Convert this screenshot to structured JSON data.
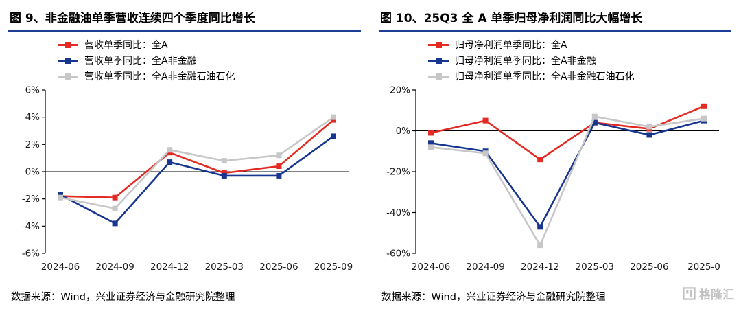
{
  "watermark": {
    "text": "格隆汇"
  },
  "chart_data": [
    {
      "type": "line",
      "title": "图 9、非金融油单季营收连续四个季度同比增长",
      "source": "数据来源：Wind，兴业证券经济与金融研究院整理",
      "categories": [
        "2024-06",
        "2024-09",
        "2024-12",
        "2025-03",
        "2025-06",
        "2025-09"
      ],
      "ylim": [
        -6,
        6
      ],
      "yticks": [
        6,
        4,
        2,
        0,
        -2,
        -4,
        -6
      ],
      "ytick_suffix": "%",
      "grid": false,
      "legend_position": "top-left",
      "series": [
        {
          "name": "营收单季同比：全A",
          "color": "#e32a23",
          "values": [
            -1.8,
            -1.9,
            1.4,
            -0.1,
            0.4,
            3.8
          ]
        },
        {
          "name": "营收单季同比：全A非金融",
          "color": "#17368f",
          "values": [
            -1.7,
            -3.8,
            0.7,
            -0.3,
            -0.3,
            2.6
          ]
        },
        {
          "name": "营收单季同比：全A非金融石油石化",
          "color": "#c7c7c7",
          "values": [
            -1.9,
            -2.7,
            1.6,
            0.8,
            1.2,
            4.0
          ]
        }
      ]
    },
    {
      "type": "line",
      "title": "图 10、25Q3 全 A 单季归母净利润同比大幅增长",
      "source": "数据来源：Wind，兴业证券经济与金融研究院整理",
      "categories": [
        "2024-06",
        "2024-09",
        "2024-12",
        "2025-03",
        "2025-06",
        "2025-0"
      ],
      "ylim": [
        -60,
        20
      ],
      "yticks": [
        20,
        0,
        -20,
        -40,
        -60
      ],
      "ytick_suffix": "%",
      "grid": false,
      "legend_position": "top-left",
      "series": [
        {
          "name": "归母净利润单季同比：全A",
          "color": "#e32a23",
          "values": [
            -1,
            5,
            -14,
            4,
            1,
            12
          ]
        },
        {
          "name": "归母净利润单季同比：全A非金融",
          "color": "#17368f",
          "values": [
            -6,
            -10,
            -47,
            4,
            -2,
            5
          ]
        },
        {
          "name": "归母净利润单季同比：全A非金融石油石化",
          "color": "#c7c7c7",
          "values": [
            -8,
            -11,
            -56,
            7,
            2,
            6
          ]
        }
      ]
    }
  ]
}
